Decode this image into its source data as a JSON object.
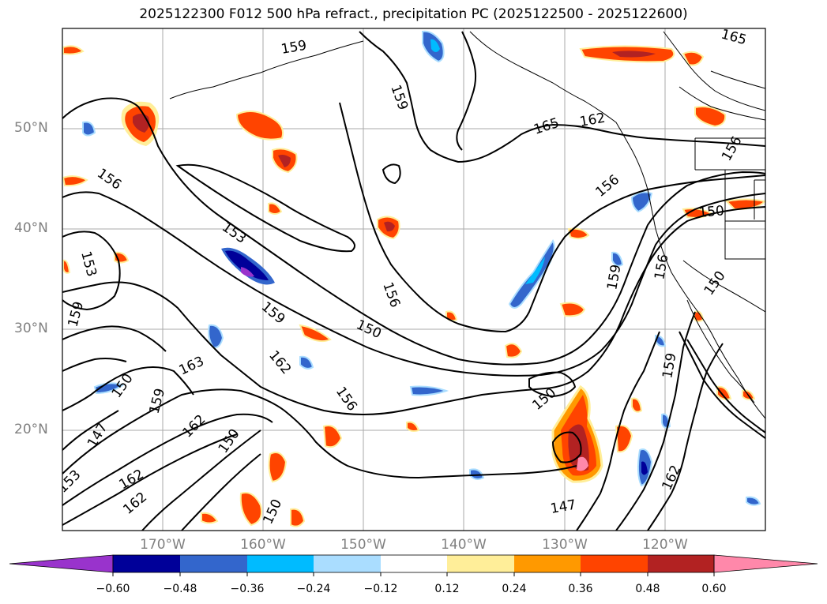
{
  "title": "2025122300 F012 500 hPa refract., precipitation PC (2025122500 - 2025122600)",
  "map": {
    "lat_labels": [
      "50°N",
      "40°N",
      "30°N",
      "20°N"
    ],
    "lon_labels": [
      "170°W",
      "160°W",
      "150°W",
      "140°W",
      "130°W",
      "120°W"
    ],
    "contour_labels": [
      "165",
      "159",
      "159",
      "165",
      "162",
      "156",
      "156",
      "156",
      "150",
      "156",
      "153",
      "153",
      "159",
      "156",
      "150",
      "159",
      "150",
      "159",
      "162",
      "163",
      "150",
      "156",
      "159",
      "150",
      "147",
      "162",
      "150",
      "150",
      "159",
      "147",
      "162",
      "153",
      "162",
      "162"
    ]
  },
  "colorbar": {
    "ticks": [
      "−0.60",
      "−0.48",
      "−0.36",
      "−0.24",
      "−0.12",
      "0.12",
      "0.24",
      "0.36",
      "0.48",
      "0.60"
    ],
    "colors": [
      "#9933cc",
      "#000099",
      "#3366cc",
      "#00bbff",
      "#aaddff",
      "#ffffff",
      "#ffee99",
      "#ff9900",
      "#ff4400",
      "#b22222",
      "#ff88aa"
    ]
  }
}
